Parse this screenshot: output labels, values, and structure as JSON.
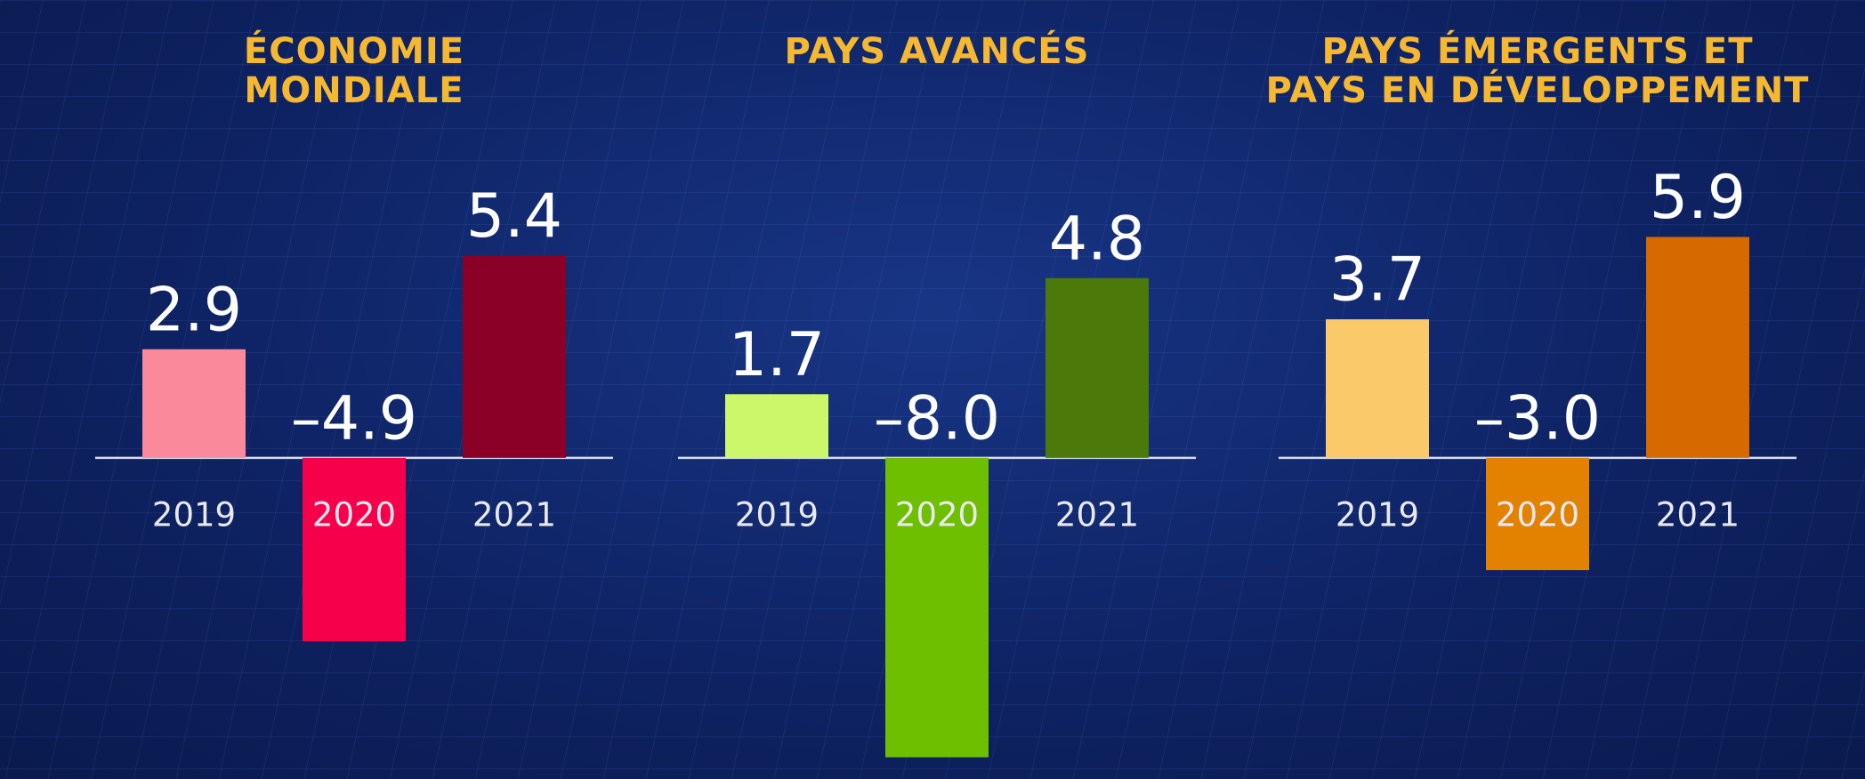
{
  "charts": [
    {
      "chart_data": {
        "type": "bar",
        "title": "ÉCONOMIE\nMONDIALE",
        "categories": [
          "2019",
          "2020",
          "2021"
        ],
        "values": [
          2.9,
          -4.9,
          5.4
        ],
        "value_labels": [
          "2.9",
          "–4.9",
          "5.4"
        ],
        "colors": [
          "#fa8a9b",
          "#f7004b",
          "#8b0027"
        ],
        "ylim": [
          -8.2,
          6.6
        ]
      }
    },
    {
      "chart_data": {
        "type": "bar",
        "title": "PAYS AVANCÉS",
        "categories": [
          "2019",
          "2020",
          "2021"
        ],
        "values": [
          1.7,
          -8.0,
          4.8
        ],
        "value_labels": [
          "1.7",
          "–8.0",
          "4.8"
        ],
        "colors": [
          "#ccf76a",
          "#6dbf00",
          "#4b7a0b"
        ],
        "ylim": [
          -8.2,
          6.6
        ]
      }
    },
    {
      "chart_data": {
        "type": "bar",
        "title": "PAYS ÉMERGENTS ET\nPAYS EN DÉVELOPPEMENT",
        "categories": [
          "2019",
          "2020",
          "2021"
        ],
        "values": [
          3.7,
          -3.0,
          5.9
        ],
        "value_labels": [
          "3.7",
          "–3.0",
          "5.9"
        ],
        "colors": [
          "#f9c96a",
          "#e28200",
          "#d66900"
        ],
        "ylim": [
          -8.2,
          6.6
        ]
      }
    }
  ]
}
